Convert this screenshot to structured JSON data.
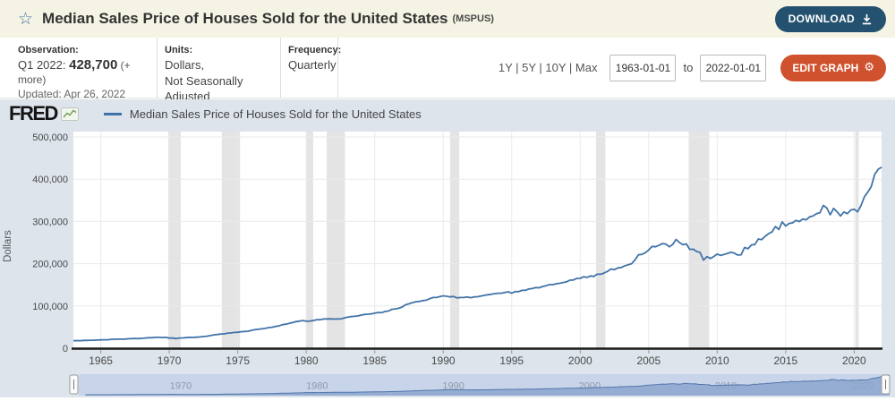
{
  "header": {
    "title": "Median Sales Price of Houses Sold for the United States",
    "series_id": "(MSPUS)",
    "download_label": "DOWNLOAD"
  },
  "info_bar": {
    "observation": {
      "label": "Observation:",
      "value_prefix": "Q1 2022: ",
      "value": "428,700",
      "more": " (+ more)",
      "updated": "Updated: Apr 26, 2022"
    },
    "units": {
      "label": "Units:",
      "line1": "Dollars,",
      "line2": "Not Seasonally Adjusted"
    },
    "frequency": {
      "label": "Frequency:",
      "value": "Quarterly"
    },
    "range_links": "1Y | 5Y | 10Y | Max",
    "date_from": "1963-01-01",
    "to_label": "to",
    "date_to": "2022-01-01",
    "edit_graph_label": "EDIT GRAPH"
  },
  "graph_header": {
    "logo": "FRED",
    "legend": "Median Sales Price of Houses Sold for the United States"
  },
  "colors": {
    "title_bar_bg": "#f4f3e4",
    "widget_bg": "#dde4ec",
    "line": "#4273a8",
    "recession_band": "#e4e4e4",
    "gridline": "#eaeaea",
    "download_btn": "#24516f",
    "edit_btn": "#d0512e",
    "slider_track": "#c8d4e9",
    "slider_fill": "#8aa5cd"
  },
  "chart_data": {
    "type": "line",
    "title": "Median Sales Price of Houses Sold for the United States",
    "xlabel": "",
    "ylabel": "Dollars",
    "ylim": [
      0,
      500000
    ],
    "y_ticks": [
      "0",
      "100,000",
      "200,000",
      "300,000",
      "400,000",
      "500,000"
    ],
    "x_ticks": [
      1965,
      1970,
      1975,
      1980,
      1985,
      1990,
      1995,
      2000,
      2005,
      2010,
      2015,
      2020
    ],
    "x_range_years": [
      1963.0,
      2022.0
    ],
    "frequency": "quarterly",
    "start_year": 1963,
    "grid": true,
    "legend_position": "top-left",
    "values": [
      17800,
      18000,
      17900,
      18500,
      18500,
      18900,
      18900,
      19300,
      19600,
      20000,
      20000,
      21000,
      21200,
      21300,
      21400,
      21700,
      22200,
      22700,
      23000,
      22700,
      23400,
      24100,
      24700,
      24700,
      25600,
      25600,
      25300,
      25600,
      23900,
      23900,
      22700,
      24100,
      24300,
      25100,
      25600,
      25500,
      26100,
      26800,
      27600,
      28300,
      29900,
      31500,
      32500,
      33400,
      34000,
      35500,
      36100,
      37300,
      37800,
      38900,
      39600,
      40100,
      42200,
      43800,
      44800,
      45800,
      46800,
      48800,
      49600,
      51400,
      52800,
      55500,
      56700,
      58700,
      60600,
      62900,
      64000,
      65500,
      63700,
      64200,
      65300,
      67300,
      67300,
      69100,
      69300,
      69500,
      68900,
      69200,
      69000,
      71100,
      73200,
      74700,
      75500,
      76300,
      78200,
      79900,
      80600,
      81300,
      82800,
      84500,
      84200,
      86800,
      88000,
      92000,
      93000,
      94500,
      97400,
      102700,
      105000,
      107800,
      110000,
      110500,
      112500,
      113500,
      117000,
      120000,
      120000,
      122000,
      123900,
      122900,
      121500,
      122500,
      119000,
      120000,
      120000,
      121500,
      119500,
      121500,
      121800,
      123500,
      125000,
      126500,
      127500,
      129000,
      130000,
      130000,
      131800,
      133500,
      130000,
      133900,
      134000,
      136900,
      137000,
      140000,
      141000,
      143500,
      143000,
      146000,
      147900,
      150500,
      150500,
      152500,
      153500,
      155500,
      157000,
      161000,
      161500,
      165000,
      165300,
      169000,
      167500,
      171000,
      170000,
      175200,
      175000,
      178000,
      182000,
      187600,
      186000,
      190000,
      191000,
      195000,
      197500,
      200000,
      209000,
      221000,
      222000,
      226000,
      232500,
      240900,
      240000,
      243500,
      247700,
      246500,
      240000,
      245500,
      257400,
      250000,
      245000,
      246800,
      233900,
      234300,
      228900,
      226800,
      208400,
      216700,
      212200,
      216900,
      222900,
      219500,
      221800,
      224300,
      226900,
      224900,
      220400,
      221200,
      238400,
      235400,
      244400,
      245400,
      258400,
      257000,
      264800,
      270900,
      275200,
      288000,
      281000,
      298900,
      289200,
      295300,
      296700,
      302500,
      299800,
      306000,
      303800,
      310900,
      313100,
      318200,
      320500,
      337900,
      331800,
      315600,
      330900,
      322800,
      313000,
      322500,
      318400,
      327100,
      329000,
      322600,
      337500,
      358700,
      369800,
      382600,
      411200,
      423600,
      428700
    ],
    "recessions": [
      [
        1969.917,
        1970.833
      ],
      [
        1973.833,
        1975.167
      ],
      [
        1980.0,
        1980.5
      ],
      [
        1981.5,
        1982.833
      ],
      [
        1990.5,
        1991.167
      ],
      [
        2001.167,
        2001.833
      ],
      [
        2007.917,
        2009.417
      ],
      [
        2020.083,
        2020.333
      ]
    ],
    "slider_labels": [
      "1970",
      "1980",
      "1990",
      "2000",
      "2010",
      "2020"
    ]
  }
}
